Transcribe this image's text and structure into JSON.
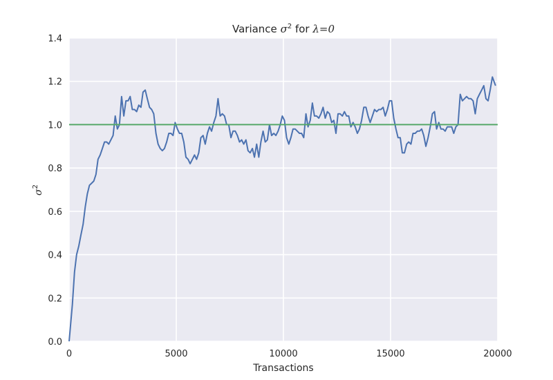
{
  "chart_data": {
    "type": "line",
    "title": {
      "prefix": "Variance ",
      "sigma": "σ",
      "sup": "2",
      "middle": " for ",
      "lambda": "λ",
      "eq": "=0"
    },
    "xlabel": "Transactions",
    "ylabel": {
      "sigma": "σ",
      "sup": "2"
    },
    "xlim": [
      0,
      20000
    ],
    "ylim": [
      0,
      1.4
    ],
    "xticks": [
      0,
      5000,
      10000,
      15000,
      20000
    ],
    "xtick_labels": [
      "0",
      "5000",
      "10000",
      "15000",
      "20000"
    ],
    "yticks": [
      0.0,
      0.2,
      0.4,
      0.6,
      0.8,
      1.0,
      1.2,
      1.4
    ],
    "ytick_labels": [
      "0.0",
      "0.2",
      "0.4",
      "0.6",
      "0.8",
      "1.0",
      "1.2",
      "1.4"
    ],
    "grid": true,
    "background": "#eaeaf2",
    "series": [
      {
        "color": "#4c72b0",
        "x": [
          0,
          150,
          250,
          350,
          450,
          550,
          650,
          750,
          850,
          950,
          1050,
          1150,
          1250,
          1350,
          1450,
          1550,
          1650,
          1750,
          1850,
          1950,
          2050,
          2150,
          2250,
          2350,
          2450,
          2550,
          2650,
          2750,
          2850,
          2950,
          3050,
          3150,
          3250,
          3350,
          3450,
          3550,
          3650,
          3750,
          3850,
          3950,
          4050,
          4150,
          4250,
          4350,
          4450,
          4550,
          4650,
          4750,
          4850,
          4950,
          5050,
          5150,
          5250,
          5350,
          5450,
          5550,
          5650,
          5750,
          5850,
          5950,
          6050,
          6150,
          6250,
          6350,
          6450,
          6550,
          6650,
          6750,
          6850,
          6950,
          7050,
          7150,
          7250,
          7350,
          7450,
          7550,
          7650,
          7750,
          7850,
          7950,
          8050,
          8150,
          8250,
          8350,
          8450,
          8550,
          8650,
          8750,
          8850,
          8950,
          9050,
          9150,
          9250,
          9350,
          9450,
          9550,
          9650,
          9750,
          9850,
          9950,
          10050,
          10150,
          10250,
          10350,
          10450,
          10550,
          10650,
          10750,
          10850,
          10950,
          11050,
          11150,
          11250,
          11350,
          11450,
          11550,
          11650,
          11750,
          11850,
          11950,
          12050,
          12150,
          12250,
          12350,
          12450,
          12550,
          12650,
          12750,
          12850,
          12950,
          13050,
          13150,
          13250,
          13350,
          13450,
          13550,
          13650,
          13750,
          13850,
          13950,
          14050,
          14150,
          14250,
          14350,
          14450,
          14550,
          14650,
          14750,
          14850,
          14950,
          15050,
          15150,
          15250,
          15350,
          15450,
          15550,
          15650,
          15750,
          15850,
          15950,
          16050,
          16150,
          16250,
          16350,
          16450,
          16550,
          16650,
          16750,
          16850,
          16950,
          17050,
          17150,
          17250,
          17350,
          17450,
          17550,
          17650,
          17750,
          17850,
          17950,
          18050,
          18150,
          18250,
          18350,
          18450,
          18550,
          18650,
          18750,
          18850,
          18950,
          19050,
          19150,
          19250,
          19350,
          19450,
          19550,
          19650,
          19750,
          19900
        ],
        "values": [
          0.0,
          0.17,
          0.32,
          0.4,
          0.44,
          0.49,
          0.54,
          0.62,
          0.68,
          0.72,
          0.73,
          0.74,
          0.77,
          0.84,
          0.86,
          0.89,
          0.92,
          0.92,
          0.91,
          0.93,
          0.95,
          1.04,
          0.98,
          1.0,
          1.13,
          1.04,
          1.11,
          1.11,
          1.13,
          1.07,
          1.07,
          1.06,
          1.09,
          1.08,
          1.15,
          1.16,
          1.12,
          1.08,
          1.07,
          1.05,
          0.96,
          0.91,
          0.89,
          0.88,
          0.89,
          0.92,
          0.96,
          0.96,
          0.95,
          1.01,
          0.98,
          0.96,
          0.96,
          0.92,
          0.85,
          0.84,
          0.82,
          0.84,
          0.86,
          0.84,
          0.87,
          0.94,
          0.95,
          0.91,
          0.96,
          0.99,
          0.97,
          1.01,
          1.04,
          1.12,
          1.04,
          1.05,
          1.04,
          1.0,
          1.0,
          0.94,
          0.97,
          0.97,
          0.95,
          0.92,
          0.93,
          0.91,
          0.93,
          0.88,
          0.87,
          0.89,
          0.85,
          0.91,
          0.85,
          0.92,
          0.97,
          0.92,
          0.93,
          1.0,
          0.95,
          0.96,
          0.95,
          0.97,
          1.0,
          1.04,
          1.02,
          0.94,
          0.91,
          0.94,
          0.98,
          0.98,
          0.97,
          0.96,
          0.96,
          0.94,
          1.05,
          0.99,
          1.02,
          1.1,
          1.04,
          1.04,
          1.03,
          1.05,
          1.08,
          1.03,
          1.06,
          1.05,
          1.01,
          1.02,
          0.96,
          1.05,
          1.05,
          1.04,
          1.06,
          1.04,
          1.04,
          0.99,
          1.01,
          0.99,
          0.96,
          0.98,
          1.02,
          1.08,
          1.08,
          1.04,
          1.01,
          1.04,
          1.07,
          1.06,
          1.07,
          1.07,
          1.08,
          1.04,
          1.07,
          1.11,
          1.11,
          1.03,
          0.98,
          0.94,
          0.94,
          0.87,
          0.87,
          0.91,
          0.92,
          0.91,
          0.96,
          0.96,
          0.97,
          0.97,
          0.98,
          0.95,
          0.9,
          0.94,
          0.99,
          1.05,
          1.06,
          0.98,
          1.01,
          0.98,
          0.98,
          0.97,
          0.99,
          0.99,
          0.99,
          0.96,
          0.99,
          1.0,
          1.14,
          1.11,
          1.12,
          1.13,
          1.12,
          1.12,
          1.11,
          1.05,
          1.12,
          1.14,
          1.16,
          1.18,
          1.12,
          1.11,
          1.16,
          1.22,
          1.18
        ]
      },
      {
        "color": "#55a868",
        "x": [
          0,
          20000
        ],
        "values": [
          1.0,
          1.0
        ]
      }
    ]
  }
}
